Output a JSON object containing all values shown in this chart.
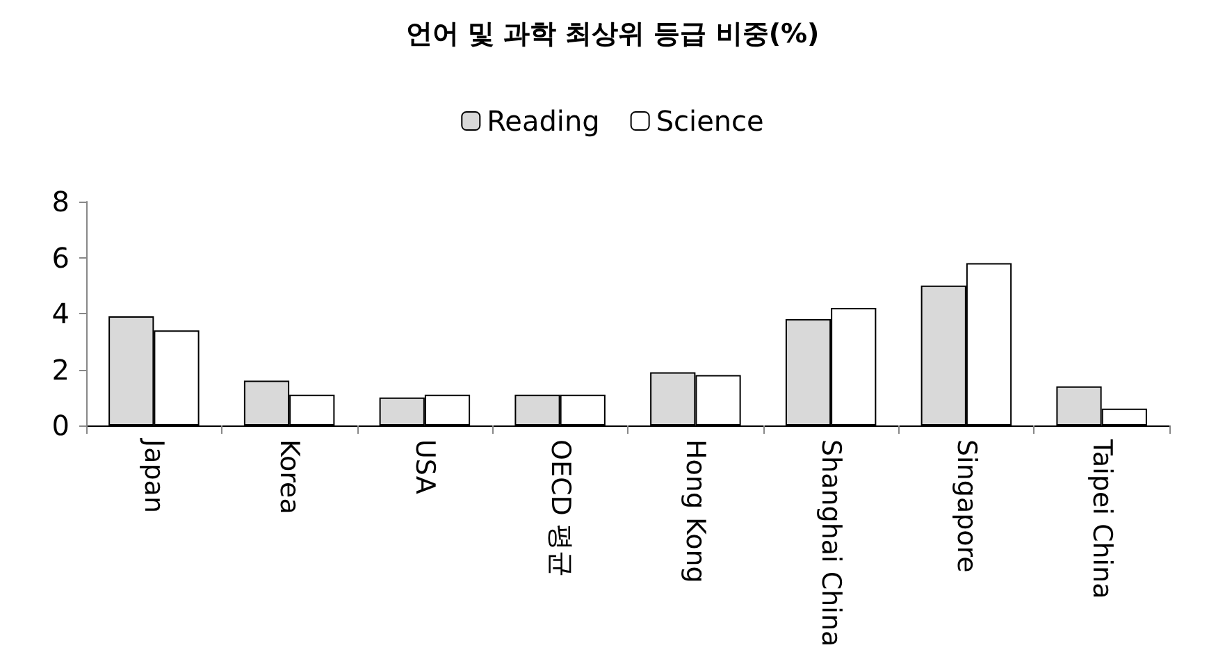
{
  "chart_data": {
    "type": "bar",
    "title": "언어 및 과학 최상위 등급 비중(%)",
    "categories": [
      "Japan",
      "Korea",
      "USA",
      "OECD 평균",
      "Hong Kong",
      "Shanghai China",
      "Singapore",
      "Taipei China"
    ],
    "series": [
      {
        "name": "Reading",
        "color": "#d9d9d9",
        "values": [
          3.9,
          1.6,
          1.0,
          1.1,
          1.9,
          3.8,
          5.0,
          1.4
        ]
      },
      {
        "name": "Science",
        "color": "#ffffff",
        "values": [
          3.4,
          1.1,
          1.1,
          1.1,
          1.8,
          4.2,
          5.8,
          0.6
        ]
      }
    ],
    "ylim": [
      0,
      8
    ],
    "yticks": [
      0,
      2,
      4,
      6,
      8
    ],
    "grid": false,
    "legend": "top"
  }
}
